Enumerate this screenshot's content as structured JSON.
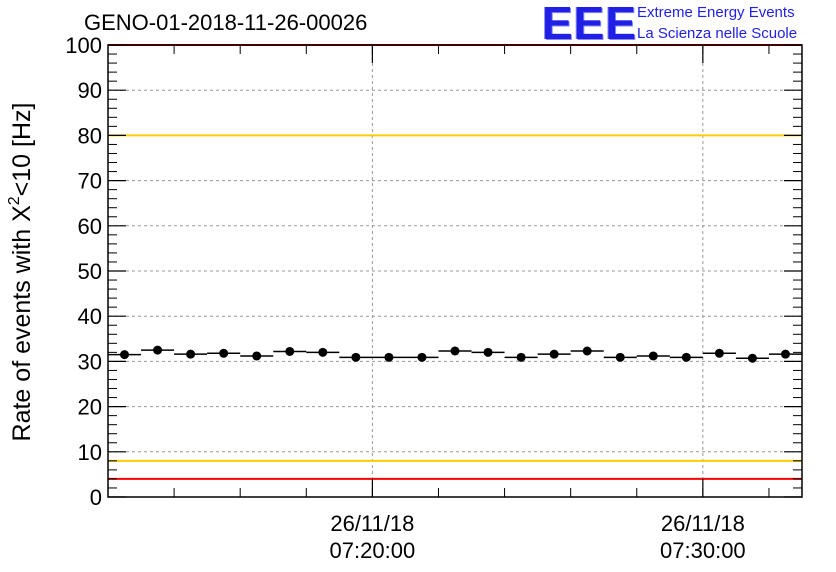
{
  "header": {
    "run_title": "GENO-01-2018-11-26-00026",
    "logo": {
      "mark": "EEE",
      "line1": "Extreme Energy Events",
      "line2": "La Scienza nelle Scuole",
      "color": "#1f1fe6"
    }
  },
  "chart_data": {
    "type": "scatter",
    "ylabel_main": "Rate of events with X",
    "ylabel_sup": "2",
    "ylabel_rest": "<10 [Hz]",
    "xlabel": "",
    "ylim": [
      0,
      100
    ],
    "xlim": [
      "07:12:00",
      "07:33:00"
    ],
    "y_ticks": [
      0,
      10,
      20,
      30,
      40,
      50,
      60,
      70,
      80,
      90,
      100
    ],
    "x_tick_labels": [
      {
        "date": "26/11/18",
        "time": "07:20:00"
      },
      {
        "date": "26/11/18",
        "time": "07:30:00"
      }
    ],
    "grid": true,
    "reference_lines": [
      {
        "y": 100,
        "color": "#ff0000"
      },
      {
        "y": 80,
        "color": "#ffcc00"
      },
      {
        "y": 8,
        "color": "#ffcc00"
      },
      {
        "y": 4,
        "color": "#ff0000"
      }
    ],
    "series": [
      {
        "x": [
          "07:12:30",
          "07:13:30",
          "07:14:30",
          "07:15:30",
          "07:16:30",
          "07:17:30",
          "07:18:30",
          "07:19:30",
          "07:20:30",
          "07:21:30",
          "07:22:30",
          "07:23:30",
          "07:24:30",
          "07:25:30",
          "07:26:30",
          "07:27:30",
          "07:28:30",
          "07:29:30",
          "07:30:30",
          "07:31:30",
          "07:32:30"
        ],
        "values": [
          31.5,
          32.5,
          31.6,
          31.8,
          31.2,
          32.2,
          32.0,
          30.9,
          30.9,
          30.9,
          32.3,
          32.0,
          30.9,
          31.6,
          32.3,
          30.9,
          31.2,
          30.9,
          31.8,
          30.7,
          31.6
        ],
        "color": "#000000"
      }
    ]
  }
}
